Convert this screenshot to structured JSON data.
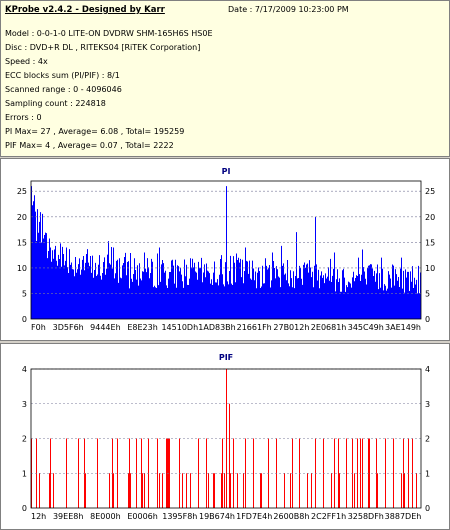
{
  "info": {
    "title": "KProbe v2.4.2 - Designed by Karr",
    "date": "Date : 7/17/2009 10:23:00 PM",
    "lines": [
      "Model : 0-0-1-0 LITE-ON DVDRW SHM-165H6S HS0E",
      "Disc : DVD+R DL , RITEKS04 [RiTEK Corporation]",
      "Speed : 4x",
      "ECC blocks sum (PI/PIF) : 8/1",
      "Scanned range : 0 - 4096046",
      "Sampling count : 224818",
      "Errors : 0",
      "PI Max= 27 , Average= 6.08 , Total= 195259",
      "PIF Max= 4 , Average= 0.07 , Total= 2222"
    ]
  },
  "chart_data": [
    {
      "type": "bar",
      "title": "PI",
      "color": "#0000ff",
      "ylim": [
        0,
        27
      ],
      "yticks": [
        0,
        5,
        10,
        15,
        20,
        25
      ],
      "xticks": [
        "F0h",
        "3D5F6h",
        "9444Eh",
        "E8E23h",
        "14510Dh",
        "1AD83Bh",
        "21661Fh",
        "27B012h",
        "2E0681h",
        "345C49h",
        "3AE149h"
      ],
      "summary": {
        "max": 27,
        "average": 6.08,
        "total": 195259
      },
      "profile": [
        22,
        17,
        15,
        14,
        13,
        12,
        12,
        12,
        11,
        11,
        11,
        11,
        10,
        10,
        10,
        10,
        10,
        10,
        10,
        10,
        9,
        9,
        9,
        9,
        9,
        9,
        9,
        9,
        9,
        9,
        9,
        9,
        9,
        9,
        9,
        9,
        9,
        9,
        9,
        9,
        9,
        9,
        10,
        9,
        9,
        9,
        9,
        9,
        9,
        9,
        9,
        9,
        9,
        9,
        9,
        9,
        9,
        9,
        9,
        9,
        9,
        9,
        8,
        8,
        8,
        8,
        8,
        8,
        8,
        8,
        8,
        8,
        8,
        8,
        8,
        8,
        8,
        8,
        8,
        8
      ],
      "peaks": [
        [
          0,
          26
        ],
        [
          0.01,
          21
        ],
        [
          0.02,
          19
        ],
        [
          0.05,
          14
        ],
        [
          0.09,
          14
        ],
        [
          0.21,
          14
        ],
        [
          0.29,
          13
        ],
        [
          0.33,
          14
        ],
        [
          0.5,
          26
        ],
        [
          0.55,
          14
        ],
        [
          0.62,
          13
        ],
        [
          0.68,
          17
        ],
        [
          0.73,
          20
        ],
        [
          0.78,
          13
        ],
        [
          0.84,
          12
        ],
        [
          0.9,
          12
        ],
        [
          0.95,
          12
        ]
      ]
    },
    {
      "type": "bar",
      "title": "PIF",
      "color": "#ff0000",
      "ylim": [
        0,
        4
      ],
      "yticks": [
        0,
        1,
        2,
        3,
        4
      ],
      "xticks": [
        "12h",
        "39EE8h",
        "8E000h",
        "E0006h",
        "1395F8h",
        "19B674h",
        "1FD7E4h",
        "2600B8h",
        "2C2FF1h",
        "3258DFh",
        "3887DEh"
      ],
      "summary": {
        "max": 4,
        "average": 0.07,
        "total": 2222
      },
      "peaks": [
        [
          0.5,
          4
        ],
        [
          0.51,
          3
        ],
        [
          0.0,
          2
        ],
        [
          0.02,
          1
        ],
        [
          0.05,
          2
        ],
        [
          0.09,
          2
        ],
        [
          0.12,
          2
        ],
        [
          0.14,
          1
        ],
        [
          0.17,
          2
        ],
        [
          0.2,
          1
        ],
        [
          0.22,
          2
        ],
        [
          0.25,
          1
        ],
        [
          0.27,
          2
        ],
        [
          0.3,
          2
        ],
        [
          0.33,
          1
        ],
        [
          0.35,
          2
        ],
        [
          0.38,
          2
        ],
        [
          0.41,
          1
        ],
        [
          0.43,
          2
        ],
        [
          0.45,
          2
        ],
        [
          0.47,
          1
        ],
        [
          0.49,
          2
        ],
        [
          0.52,
          2
        ],
        [
          0.53,
          1
        ],
        [
          0.55,
          2
        ],
        [
          0.57,
          2
        ],
        [
          0.59,
          1
        ],
        [
          0.61,
          2
        ],
        [
          0.63,
          2
        ],
        [
          0.65,
          1
        ],
        [
          0.67,
          2
        ],
        [
          0.69,
          2
        ],
        [
          0.71,
          1
        ],
        [
          0.73,
          2
        ],
        [
          0.75,
          2
        ],
        [
          0.77,
          1
        ],
        [
          0.79,
          2
        ],
        [
          0.81,
          2
        ],
        [
          0.83,
          1
        ],
        [
          0.85,
          2
        ],
        [
          0.87,
          2
        ],
        [
          0.89,
          1
        ],
        [
          0.91,
          2
        ],
        [
          0.93,
          2
        ],
        [
          0.95,
          1
        ],
        [
          0.97,
          2
        ],
        [
          0.99,
          1
        ]
      ]
    }
  ]
}
